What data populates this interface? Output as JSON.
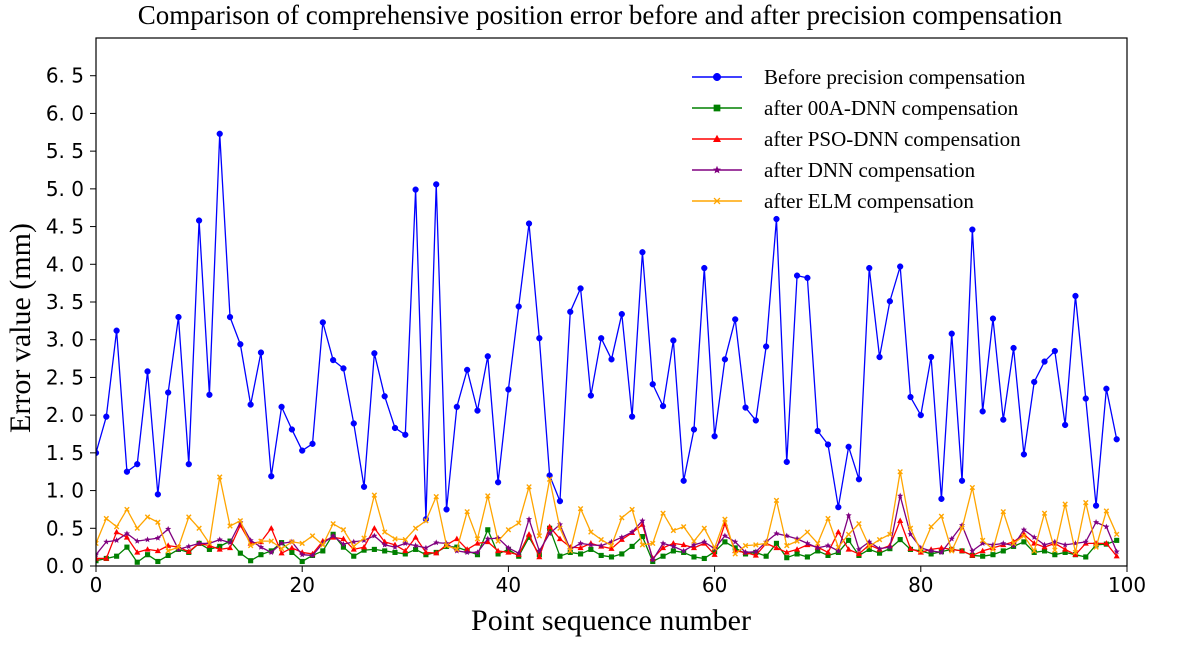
{
  "chart_data": {
    "type": "line",
    "title": "Comparison of comprehensive position error before and after precision compensation",
    "xlabel": "Point sequence number",
    "ylabel": "Error value (mm)",
    "xlim": [
      0,
      100
    ],
    "ylim": [
      0,
      7.0
    ],
    "xticks": [
      0,
      20,
      40,
      60,
      80,
      100
    ],
    "xtick_labels": [
      "0",
      "20",
      "40",
      "60",
      "80",
      "100"
    ],
    "yticks": [
      0.0,
      0.5,
      1.0,
      1.5,
      2.0,
      2.5,
      3.0,
      3.5,
      4.0,
      4.5,
      5.0,
      5.5,
      6.0,
      6.5
    ],
    "ytick_labels": [
      "0. 0",
      "0. 5",
      "1. 0",
      "1. 5",
      "2. 0",
      "2. 5",
      "3. 0",
      "3. 5",
      "4. 0",
      "4. 5",
      "5. 0",
      "5. 5",
      "6. 0",
      "6. 5"
    ],
    "grid": false,
    "legend_position": "top-right",
    "x": [
      0,
      1,
      2,
      3,
      4,
      5,
      6,
      7,
      8,
      9,
      10,
      11,
      12,
      13,
      14,
      15,
      16,
      17,
      18,
      19,
      20,
      21,
      22,
      23,
      24,
      25,
      26,
      27,
      28,
      29,
      30,
      31,
      32,
      33,
      34,
      35,
      36,
      37,
      38,
      39,
      40,
      41,
      42,
      43,
      44,
      45,
      46,
      47,
      48,
      49,
      50,
      51,
      52,
      53,
      54,
      55,
      56,
      57,
      58,
      59,
      60,
      61,
      62,
      63,
      64,
      65,
      66,
      67,
      68,
      69,
      70,
      71,
      72,
      73,
      74,
      75,
      76,
      77,
      78,
      79,
      80,
      81,
      82,
      83,
      84,
      85,
      86,
      87,
      88,
      89,
      90,
      91,
      92,
      93,
      94,
      95,
      96,
      97,
      98,
      99
    ],
    "series": [
      {
        "name": "Before precision compensation",
        "color": "#0000ff",
        "marker": "circle",
        "values": [
          1.5,
          1.98,
          3.12,
          1.25,
          1.35,
          2.58,
          0.95,
          2.3,
          3.3,
          1.35,
          4.58,
          2.27,
          5.73,
          3.3,
          2.94,
          2.14,
          2.83,
          1.19,
          2.11,
          1.81,
          1.53,
          1.62,
          3.23,
          2.73,
          2.62,
          1.89,
          1.05,
          2.82,
          2.25,
          1.83,
          1.74,
          4.99,
          0.62,
          5.06,
          0.75,
          2.11,
          2.6,
          2.06,
          2.78,
          1.11,
          2.34,
          3.44,
          4.54,
          3.02,
          1.2,
          0.86,
          3.37,
          3.68,
          2.26,
          3.02,
          2.74,
          3.34,
          1.98,
          4.16,
          2.41,
          2.12,
          2.99,
          1.13,
          1.81,
          3.95,
          1.72,
          2.74,
          3.27,
          2.1,
          1.93,
          2.91,
          4.6,
          1.38,
          3.85,
          3.82,
          1.79,
          1.61,
          0.78,
          1.58,
          1.15,
          3.95,
          2.77,
          3.51,
          3.97,
          2.24,
          2.0,
          2.77,
          0.89,
          3.08,
          1.13,
          4.46,
          2.05,
          3.28,
          1.94,
          2.89,
          1.48,
          2.44,
          2.71,
          2.85,
          1.87,
          3.58,
          2.22,
          0.8,
          2.35,
          1.68
        ]
      },
      {
        "name": "after 00A-DNN compensation",
        "color": "#008000",
        "marker": "square",
        "values": [
          0.07,
          0.1,
          0.13,
          0.25,
          0.05,
          0.15,
          0.06,
          0.14,
          0.22,
          0.18,
          0.3,
          0.22,
          0.26,
          0.33,
          0.17,
          0.07,
          0.15,
          0.2,
          0.31,
          0.18,
          0.06,
          0.14,
          0.2,
          0.42,
          0.25,
          0.13,
          0.21,
          0.22,
          0.2,
          0.18,
          0.16,
          0.22,
          0.15,
          0.18,
          0.26,
          0.25,
          0.2,
          0.15,
          0.48,
          0.16,
          0.22,
          0.13,
          0.38,
          0.15,
          0.5,
          0.13,
          0.18,
          0.16,
          0.22,
          0.14,
          0.12,
          0.16,
          0.26,
          0.39,
          0.06,
          0.13,
          0.2,
          0.18,
          0.12,
          0.1,
          0.19,
          0.32,
          0.24,
          0.16,
          0.18,
          0.13,
          0.3,
          0.11,
          0.16,
          0.12,
          0.2,
          0.14,
          0.18,
          0.34,
          0.14,
          0.22,
          0.17,
          0.23,
          0.35,
          0.22,
          0.2,
          0.16,
          0.19,
          0.22,
          0.2,
          0.14,
          0.13,
          0.15,
          0.2,
          0.26,
          0.32,
          0.18,
          0.2,
          0.15,
          0.18,
          0.15,
          0.12,
          0.28,
          0.29,
          0.34
        ]
      },
      {
        "name": "after PSO-DNN compensation",
        "color": "#ff0000",
        "marker": "triangle",
        "values": [
          0.1,
          0.1,
          0.45,
          0.38,
          0.18,
          0.22,
          0.2,
          0.27,
          0.25,
          0.19,
          0.3,
          0.27,
          0.22,
          0.24,
          0.54,
          0.3,
          0.32,
          0.5,
          0.17,
          0.24,
          0.18,
          0.16,
          0.33,
          0.38,
          0.36,
          0.22,
          0.25,
          0.5,
          0.32,
          0.28,
          0.2,
          0.38,
          0.18,
          0.17,
          0.28,
          0.36,
          0.22,
          0.3,
          0.32,
          0.2,
          0.18,
          0.15,
          0.42,
          0.12,
          0.52,
          0.36,
          0.25,
          0.24,
          0.3,
          0.26,
          0.23,
          0.35,
          0.44,
          0.55,
          0.1,
          0.24,
          0.3,
          0.28,
          0.24,
          0.3,
          0.15,
          0.56,
          0.2,
          0.18,
          0.14,
          0.3,
          0.24,
          0.18,
          0.22,
          0.28,
          0.25,
          0.18,
          0.45,
          0.22,
          0.16,
          0.28,
          0.22,
          0.27,
          0.6,
          0.23,
          0.18,
          0.22,
          0.24,
          0.22,
          0.2,
          0.14,
          0.2,
          0.24,
          0.28,
          0.32,
          0.42,
          0.3,
          0.25,
          0.3,
          0.22,
          0.15,
          0.3,
          0.3,
          0.3,
          0.13
        ]
      },
      {
        "name": "after DNN compensation",
        "color": "#800080",
        "marker": "star",
        "values": [
          0.15,
          0.32,
          0.34,
          0.43,
          0.33,
          0.35,
          0.37,
          0.49,
          0.22,
          0.26,
          0.3,
          0.3,
          0.35,
          0.31,
          0.58,
          0.34,
          0.25,
          0.18,
          0.3,
          0.32,
          0.15,
          0.14,
          0.3,
          0.4,
          0.29,
          0.32,
          0.34,
          0.4,
          0.28,
          0.25,
          0.3,
          0.27,
          0.24,
          0.31,
          0.3,
          0.2,
          0.18,
          0.18,
          0.36,
          0.37,
          0.24,
          0.17,
          0.62,
          0.2,
          0.43,
          0.55,
          0.22,
          0.3,
          0.28,
          0.27,
          0.32,
          0.38,
          0.45,
          0.6,
          0.08,
          0.3,
          0.26,
          0.2,
          0.28,
          0.32,
          0.23,
          0.4,
          0.32,
          0.18,
          0.19,
          0.32,
          0.43,
          0.4,
          0.36,
          0.3,
          0.24,
          0.27,
          0.2,
          0.67,
          0.22,
          0.32,
          0.23,
          0.25,
          0.93,
          0.42,
          0.24,
          0.2,
          0.18,
          0.36,
          0.54,
          0.2,
          0.3,
          0.28,
          0.3,
          0.27,
          0.48,
          0.38,
          0.28,
          0.32,
          0.28,
          0.3,
          0.32,
          0.58,
          0.52,
          0.19
        ]
      },
      {
        "name": "after ELM compensation",
        "color": "#ffa500",
        "marker": "x",
        "values": [
          0.3,
          0.63,
          0.52,
          0.75,
          0.5,
          0.65,
          0.58,
          0.2,
          0.25,
          0.65,
          0.5,
          0.3,
          1.18,
          0.53,
          0.6,
          0.27,
          0.33,
          0.33,
          0.23,
          0.32,
          0.3,
          0.4,
          0.28,
          0.56,
          0.48,
          0.26,
          0.37,
          0.94,
          0.45,
          0.36,
          0.35,
          0.5,
          0.6,
          0.92,
          0.27,
          0.22,
          0.72,
          0.36,
          0.93,
          0.33,
          0.48,
          0.57,
          1.05,
          0.4,
          1.15,
          0.5,
          0.2,
          0.76,
          0.45,
          0.35,
          0.27,
          0.64,
          0.75,
          0.28,
          0.3,
          0.7,
          0.47,
          0.52,
          0.33,
          0.5,
          0.24,
          0.62,
          0.16,
          0.27,
          0.28,
          0.3,
          0.87,
          0.27,
          0.33,
          0.45,
          0.3,
          0.63,
          0.25,
          0.42,
          0.56,
          0.26,
          0.35,
          0.42,
          1.25,
          0.5,
          0.2,
          0.52,
          0.66,
          0.2,
          0.5,
          1.04,
          0.34,
          0.22,
          0.72,
          0.3,
          0.4,
          0.2,
          0.7,
          0.21,
          0.82,
          0.18,
          0.84,
          0.25,
          0.73,
          0.42
        ]
      }
    ]
  }
}
